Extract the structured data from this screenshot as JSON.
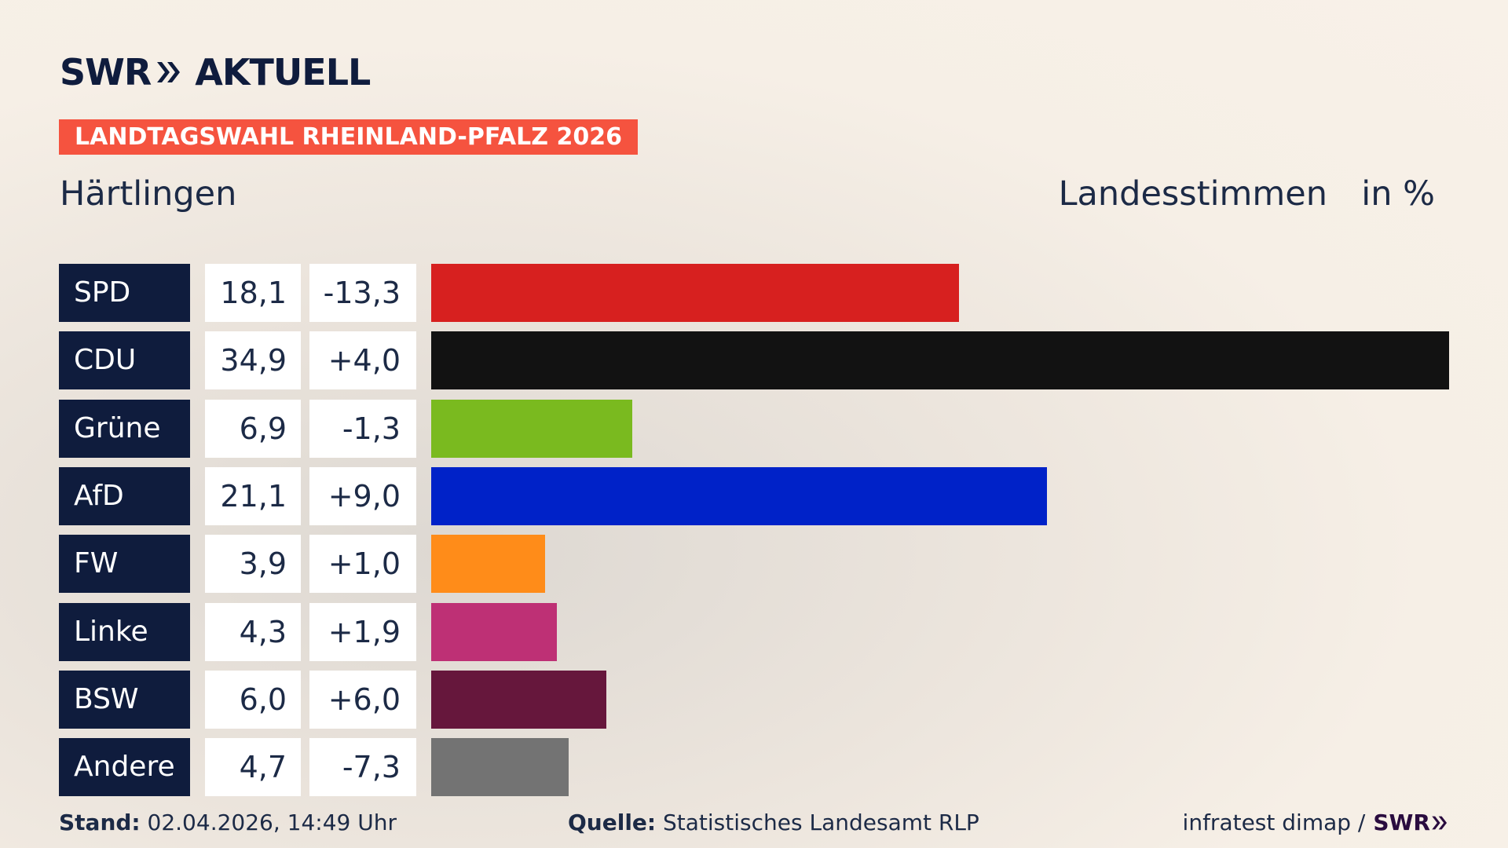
{
  "brand": {
    "swr": "SWR",
    "aktuell": "AKTUELL"
  },
  "banner": "LANDTAGSWAHL RHEINLAND-PFALZ 2026",
  "place": "Härtlingen",
  "mode": "Landesstimmen",
  "unit": "in %",
  "chart_data": {
    "type": "bar",
    "orientation": "horizontal",
    "categories": [
      "SPD",
      "CDU",
      "Grüne",
      "AfD",
      "FW",
      "Linke",
      "BSW",
      "Andere"
    ],
    "values": [
      18.1,
      34.9,
      6.9,
      21.1,
      3.9,
      4.3,
      6.0,
      4.7
    ],
    "values_label": [
      "18,1",
      "34,9",
      "6,9",
      "21,1",
      "3,9",
      "4,3",
      "6,0",
      "4,7"
    ],
    "changes": [
      -13.3,
      4.0,
      -1.3,
      9.0,
      1.0,
      1.9,
      6.0,
      -7.3
    ],
    "changes_label": [
      "-13,3",
      "+4,0",
      "-1,3",
      "+9,0",
      "+1,0",
      "+1,9",
      "+6,0",
      "-7,3"
    ],
    "colors": [
      "#d7201f",
      "#121212",
      "#7aba1f",
      "#0022c8",
      "#ff8c19",
      "#be3075",
      "#66173c",
      "#737373"
    ],
    "xlim": [
      0,
      34.9
    ]
  },
  "footer": {
    "stand_label": "Stand:",
    "stand_value": "02.04.2026, 14:49 Uhr",
    "source_label": "Quelle:",
    "source_value": "Statistisches Landesamt RLP",
    "credit": "infratest dimap /",
    "credit_brand": "SWR"
  }
}
